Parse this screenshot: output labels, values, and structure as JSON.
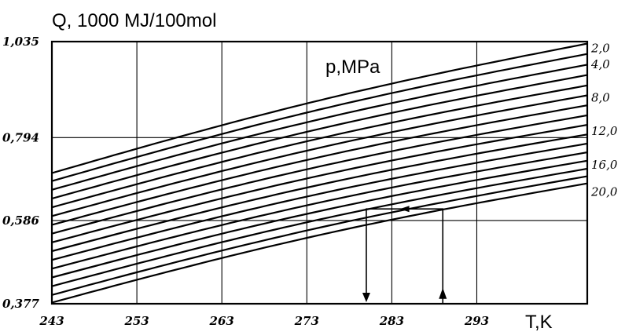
{
  "chart_data": {
    "type": "line",
    "title": "Q, 1000 MJ/100mol",
    "xlabel": "T,K",
    "series_label_title": "p,MPa",
    "xlim": [
      243,
      306
    ],
    "ylim": [
      0.377,
      1.035
    ],
    "x_ticks": [
      "243",
      "253",
      "263",
      "273",
      "283",
      "293"
    ],
    "x_tick_values": [
      243,
      253,
      263,
      273,
      283,
      293
    ],
    "y_ticks": [
      "0,377",
      "0,586",
      "0,794",
      "1,035"
    ],
    "y_tick_values": [
      0.377,
      0.586,
      0.794,
      1.035
    ],
    "pressure_labels": [
      "2,0",
      "4,0",
      "8,0",
      "12,0",
      "16,0",
      "20,0"
    ],
    "pressure_label_values": [
      1.02,
      0.98,
      0.896,
      0.812,
      0.728,
      0.66
    ],
    "grid": true,
    "x": [
      243,
      306
    ],
    "series": [
      {
        "values": [
          0.705,
          1.03
        ]
      },
      {
        "values": [
          0.685,
          1.004
        ]
      },
      {
        "values": [
          0.663,
          0.977
        ]
      },
      {
        "values": [
          0.641,
          0.951
        ]
      },
      {
        "values": [
          0.619,
          0.925
        ]
      },
      {
        "values": [
          0.597,
          0.9
        ]
      },
      {
        "values": [
          0.575,
          0.875
        ]
      },
      {
        "values": [
          0.553,
          0.85
        ]
      },
      {
        "values": [
          0.531,
          0.826
        ]
      },
      {
        "values": [
          0.509,
          0.802
        ]
      },
      {
        "values": [
          0.487,
          0.779
        ]
      },
      {
        "values": [
          0.465,
          0.757
        ]
      },
      {
        "values": [
          0.443,
          0.736
        ]
      },
      {
        "values": [
          0.421,
          0.716
        ]
      },
      {
        "values": [
          0.399,
          0.697
        ]
      },
      {
        "values": [
          0.38,
          0.679
        ]
      }
    ],
    "example_path": {
      "down_x": 280,
      "up_x": 289,
      "top_y": 0.615,
      "bottom_y": 0.377,
      "arrow_y": 0.405
    }
  }
}
